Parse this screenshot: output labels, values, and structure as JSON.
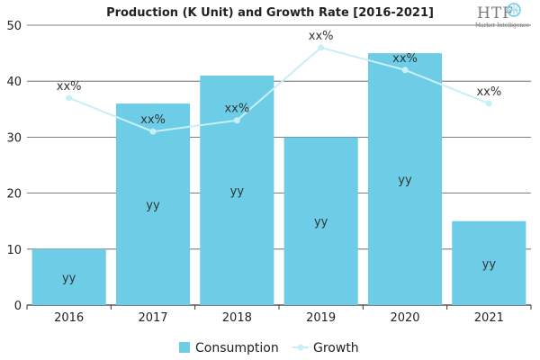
{
  "chart_data": {
    "type": "bar",
    "title": "Production (K Unit) and Growth Rate [2016-2021]",
    "categories": [
      "2016",
      "2017",
      "2018",
      "2019",
      "2020",
      "2021"
    ],
    "series": [
      {
        "name": "Consumption",
        "type": "bar",
        "values": [
          10,
          36,
          41,
          30,
          45,
          15
        ],
        "labels": [
          "yy",
          "yy",
          "yy",
          "yy",
          "yy",
          "yy"
        ],
        "color": "#6ecde6"
      },
      {
        "name": "Growth",
        "type": "line",
        "values": [
          37,
          31,
          33,
          46,
          42,
          36
        ],
        "labels": [
          "xx%",
          "xx%",
          "xx%",
          "xx%",
          "xx%",
          "xx%"
        ],
        "color": "#c9eef6"
      }
    ],
    "yticks": [
      "0",
      "10",
      "20",
      "30",
      "40",
      "50"
    ],
    "ylim": [
      0,
      50
    ],
    "grid": true,
    "legend": "bottom",
    "xlabel": "",
    "ylabel": ""
  },
  "logo": {
    "brand": "HTF",
    "tagline": "Market Intelligence"
  }
}
